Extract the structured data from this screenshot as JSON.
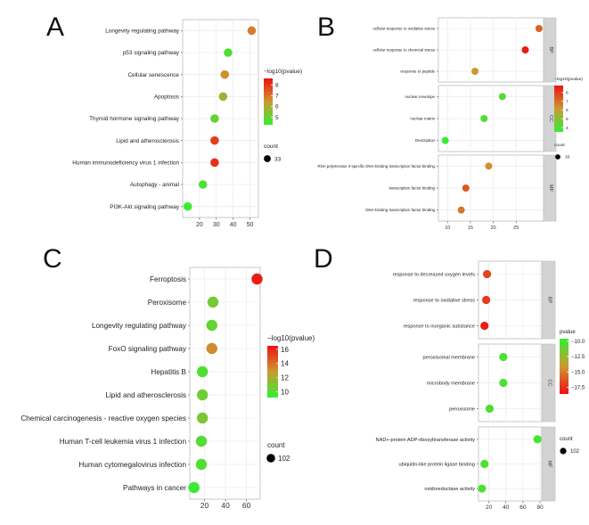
{
  "colors": {
    "low": "#33ee33",
    "mid": "#cc9933",
    "high": "#ee1111",
    "strip": "#d3d3d3",
    "grid": "#ececec"
  },
  "chart_data": [
    {
      "panel": "A",
      "type": "scatter",
      "categories": [
        "Longevity regulating pathway",
        "p53 signaling pathway",
        "Cellular senescence",
        "Apoptosis",
        "Thyroid hormone signaling pathway",
        "Lipid and atherosclerosis",
        "Human immunodeficiency virus 1 infection",
        "Autophagy - animal",
        "PI3K-Akt signaling pathway"
      ],
      "x": [
        51,
        37,
        35,
        34,
        29,
        29,
        29,
        22,
        13
      ],
      "color_values": [
        6.9,
        4.7,
        6.6,
        5.9,
        5.0,
        7.9,
        8.1,
        4.6,
        4.4
      ],
      "xlim": [
        10,
        55
      ],
      "xticks": [
        "20",
        "30",
        "40",
        "50"
      ],
      "xtick_values": [
        20,
        30,
        40,
        50
      ],
      "legend_title": "−log10(pvalue)",
      "legend_ticks": [
        "8",
        "7",
        "6",
        "5"
      ],
      "legend_tick_values": [
        8,
        7,
        6,
        5
      ],
      "clim": [
        4.3,
        8.6
      ],
      "size_title": "count",
      "size_label": "33"
    },
    {
      "panel": "B",
      "type": "scatter",
      "facets": [
        {
          "name": "BP",
          "categories": [
            "cellular response to oxidative stress",
            "cellular response to chemical stress",
            "response to peptide"
          ],
          "x": [
            30,
            27,
            16
          ],
          "color_values": [
            7.2,
            8.6,
            6.2
          ]
        },
        {
          "name": "CC",
          "categories": [
            "nuclear envelope",
            "nuclear matrix",
            "Description"
          ],
          "x": [
            22,
            18,
            9.5
          ],
          "color_values": [
            4.2,
            4.0,
            3.6
          ]
        },
        {
          "name": "MF",
          "categories": [
            "RNA polymerase II-specific DNA-binding transcription factor binding",
            "transcription factor binding",
            "DNA-binding transcription factor binding"
          ],
          "x": [
            19,
            14,
            13
          ],
          "color_values": [
            6.3,
            7.4,
            6.8
          ]
        }
      ],
      "xlim": [
        8,
        31
      ],
      "xticks": [
        "10",
        "15",
        "20",
        "25"
      ],
      "xtick_values": [
        10,
        15,
        20,
        25
      ],
      "legend_title": "−log10(pvalue)",
      "legend_ticks": [
        "8",
        "7",
        "6",
        "5",
        "4"
      ],
      "legend_tick_values": [
        8,
        7,
        6,
        5,
        4
      ],
      "clim": [
        3.5,
        8.8
      ],
      "size_title": "count",
      "size_label": "33"
    },
    {
      "panel": "C",
      "type": "scatter",
      "categories": [
        "Ferroptosis",
        "Peroxisome",
        "Longevity regulating pathway",
        "FoxO signaling pathway",
        "Hepatitis B",
        "Lipid and atherosclerosis",
        "Chemical carcinogenesis - reactive oxygen species",
        "Human T-cell leukemia virus 1 infection",
        "Human cytomegalovirus infection",
        "Pathways in cancer"
      ],
      "x": [
        70,
        28,
        27,
        27,
        18,
        18,
        18,
        17,
        17,
        10
      ],
      "color_values": [
        16.2,
        10.8,
        10.3,
        13.2,
        9.8,
        10.6,
        11.0,
        10.0,
        9.9,
        9.4
      ],
      "xlim": [
        6,
        73
      ],
      "xticks": [
        "20",
        "40",
        "60"
      ],
      "xtick_values": [
        20,
        40,
        60
      ],
      "legend_title": "−log10(pvalue)",
      "legend_ticks": [
        "16",
        "14",
        "12",
        "10"
      ],
      "legend_tick_values": [
        16,
        14,
        12,
        10
      ],
      "clim": [
        9.2,
        16.5
      ],
      "size_title": "count",
      "size_label": "102"
    },
    {
      "panel": "D",
      "type": "scatter",
      "facets": [
        {
          "name": "BP",
          "categories": [
            "response to decreased oxygen levels",
            "response to oxidative stress",
            "response to inorganic substance"
          ],
          "x": [
            18,
            17,
            15
          ],
          "color_values": [
            -16.8,
            -17.2,
            -18.2
          ]
        },
        {
          "name": "CC",
          "categories": [
            "peroxisomal membrane",
            "microbody membrane",
            "peroxisome"
          ],
          "x": [
            37,
            37,
            21
          ],
          "color_values": [
            -10.3,
            -10.3,
            -10.6
          ]
        },
        {
          "name": "MF",
          "categories": [
            "NAD+-protein ADP-ribosyltransferase activity",
            "ubiquitin-like protein ligase binding",
            "oxidoreductase activity"
          ],
          "x": [
            77,
            15,
            12
          ],
          "color_values": [
            -10.0,
            -10.4,
            -10.3
          ]
        }
      ],
      "xlim": [
        8,
        82
      ],
      "xticks": [
        "20",
        "40",
        "60",
        "80"
      ],
      "xtick_values": [
        20,
        40,
        60,
        80
      ],
      "legend_title": "pvalue",
      "legend_ticks": [
        "−10.0",
        "−12.5",
        "−15.0",
        "−17.5"
      ],
      "legend_tick_values": [
        -10.0,
        -12.5,
        -15.0,
        -17.5
      ],
      "clim": [
        -18.6,
        -9.6
      ],
      "size_title": "count",
      "size_label": "102"
    }
  ]
}
